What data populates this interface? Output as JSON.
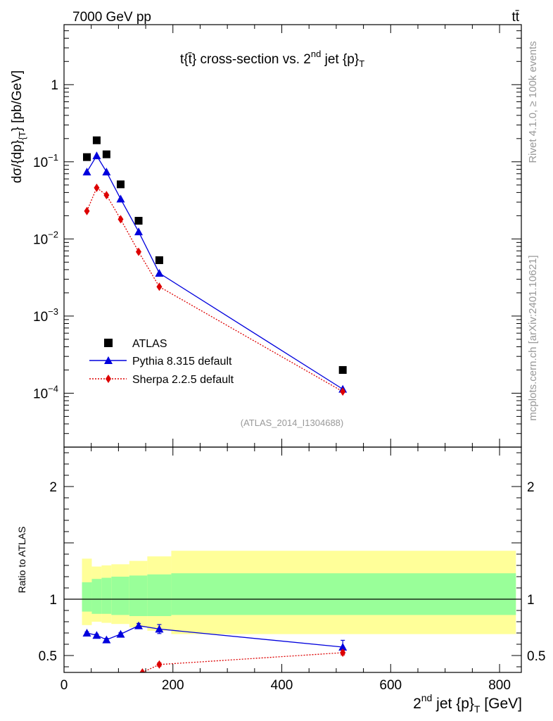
{
  "header": {
    "energy": "7000 GeV pp",
    "process": "tt̄"
  },
  "side_labels": {
    "rivet": "Rivet 4.1.0, ≥ 100k events",
    "mcplots": "mcplots.cern.ch [arXiv:2401.10621]"
  },
  "colors": {
    "atlas": "#000000",
    "pythia": "#0000dd",
    "sherpa": "#dd0000",
    "band_inner": "#99ff99",
    "band_outer": "#ffff99"
  },
  "chart_data": [
    {
      "type": "scatter",
      "panel": "main",
      "title": "t{t̄} cross-section vs. 2nd jet {p}T",
      "title_parts": {
        "main": "t{t̄} cross-section vs. 2",
        "sup": "nd",
        "after": " jet {p}",
        "sub": "T"
      },
      "ylabel": "dσ/{dp}_{T}} [pb/GeV]",
      "ylabel_parts": {
        "a": "dσ/{dp}",
        "sub": "{T",
        "b": "} [pb/GeV]"
      },
      "yscale": "log",
      "ylim": [
        2e-05,
        6
      ],
      "xlim": [
        0,
        840
      ],
      "y_ticks": [
        {
          "value": 1,
          "label": "1"
        },
        {
          "value": 0.1,
          "label": "10",
          "exp": "−1"
        },
        {
          "value": 0.01,
          "label": "10",
          "exp": "−2"
        },
        {
          "value": 0.001,
          "label": "10",
          "exp": "−3"
        },
        {
          "value": 0.0001,
          "label": "10",
          "exp": "−4"
        }
      ],
      "watermark": "(ATLAS_2014_I1304688)",
      "legend_position": "bottom-left",
      "series": [
        {
          "name": "ATLAS",
          "marker": "square",
          "x": [
            42,
            60,
            78,
            104,
            137,
            175,
            512
          ],
          "y": [
            0.115,
            0.19,
            0.125,
            0.051,
            0.0172,
            0.0053,
            0.0002
          ]
        },
        {
          "name": "Pythia 8.315 default",
          "marker": "triangle",
          "line": "solid",
          "x": [
            42,
            60,
            78,
            104,
            137,
            175,
            512
          ],
          "y": [
            0.074,
            0.12,
            0.074,
            0.033,
            0.0124,
            0.0036,
            0.000113
          ]
        },
        {
          "name": "Sherpa 2.2.5 default",
          "marker": "diamond",
          "line": "dotted",
          "x": [
            42,
            60,
            78,
            104,
            137,
            175,
            512
          ],
          "y": [
            0.023,
            0.046,
            0.037,
            0.018,
            0.0068,
            0.0024,
            0.000105
          ]
        }
      ]
    },
    {
      "type": "line",
      "panel": "ratio",
      "ylabel": "Ratio to ATLAS",
      "ylim": [
        0.35,
        2.35
      ],
      "xlim": [
        0,
        840
      ],
      "xlabel_parts": {
        "a": "2",
        "sup": "nd",
        "b": " jet {p}",
        "sub": "T",
        "c": " [GeV]"
      },
      "x_ticks": [
        {
          "value": 0,
          "label": "0"
        },
        {
          "value": 200,
          "label": "200"
        },
        {
          "value": 400,
          "label": "400"
        },
        {
          "value": 600,
          "label": "600"
        },
        {
          "value": 800,
          "label": "800"
        }
      ],
      "y_ticks": [
        {
          "value": 0.5,
          "label": "0.5"
        },
        {
          "value": 1,
          "label": "1"
        },
        {
          "value": 2,
          "label": "2"
        }
      ],
      "bands": {
        "bin_edges": [
          33,
          51,
          69,
          87,
          120,
          153,
          197,
          830
        ],
        "inner_lo": [
          0.89,
          0.87,
          0.87,
          0.86,
          0.85,
          0.85,
          0.86
        ],
        "inner_hi": [
          1.15,
          1.18,
          1.19,
          1.2,
          1.21,
          1.22,
          1.23
        ],
        "outer_lo": [
          0.77,
          0.8,
          0.79,
          0.78,
          0.75,
          0.72,
          0.69
        ],
        "outer_hi": [
          1.36,
          1.29,
          1.3,
          1.31,
          1.34,
          1.38,
          1.43
        ]
      },
      "series": [
        {
          "name": "Pythia 8.315 default",
          "marker": "triangle",
          "line": "solid",
          "x": [
            42,
            60,
            78,
            104,
            137,
            175,
            512
          ],
          "y": [
            0.7,
            0.68,
            0.64,
            0.69,
            0.765,
            0.735,
            0.575
          ],
          "err": [
            0.01,
            0.01,
            0.012,
            0.012,
            0.02,
            0.04,
            0.06
          ]
        },
        {
          "name": "Sherpa 2.2.5 default",
          "marker": "diamond",
          "line": "dotted",
          "x": [
            144,
            175,
            512
          ],
          "y": [
            0.35,
            0.42,
            0.525
          ],
          "err": [
            0,
            0.015,
            0.02
          ]
        }
      ]
    }
  ]
}
